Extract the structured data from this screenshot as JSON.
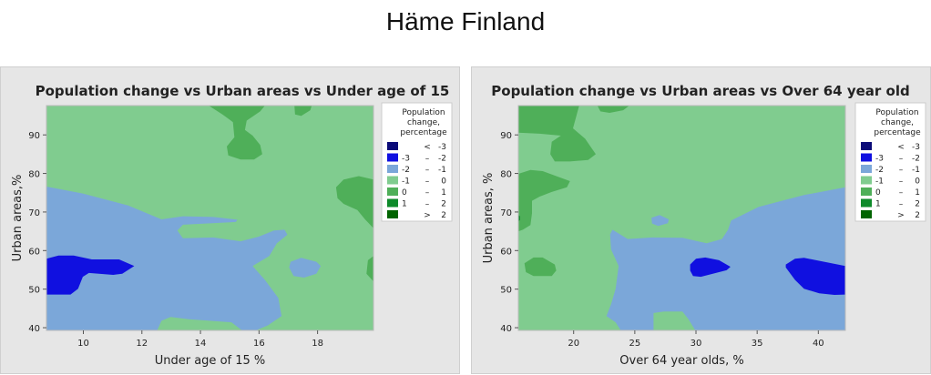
{
  "page_title": "Häme Finland",
  "chart_data": [
    {
      "type": "contour",
      "title": "Population change vs Urban areas vs  Under age of 15",
      "xlabel": "Under age of 15 %",
      "ylabel": "Urban areas,%",
      "xlim": [
        8.74,
        19.91
      ],
      "ylim": [
        39.3,
        97.6
      ],
      "xticks": [
        10,
        12,
        14,
        16,
        18
      ],
      "yticks": [
        40,
        50,
        60,
        70,
        80,
        90
      ],
      "legend_title": [
        "Population",
        "change,",
        "percentage"
      ],
      "levels": [
        {
          "lo": "",
          "sep": "<",
          "hi": "-3",
          "color": "#0b0b78"
        },
        {
          "lo": "-3",
          "sep": "–",
          "hi": "-2",
          "color": "#1010e0"
        },
        {
          "lo": "-2",
          "sep": "–",
          "hi": "-1",
          "color": "#7ba7d9"
        },
        {
          "lo": "-1",
          "sep": "–",
          "hi": "0",
          "color": "#80cc8f"
        },
        {
          "lo": "0",
          "sep": "–",
          "hi": "1",
          "color": "#4faf59"
        },
        {
          "lo": "1",
          "sep": "–",
          "hi": "2",
          "color": "#0e8a2a"
        },
        {
          "lo": "",
          "sep": ">",
          "hi": "2",
          "color": "#006400"
        }
      ],
      "background_level": 3,
      "regions": [
        {
          "level": 2,
          "points": [
            [
              8.74,
              76.6
            ],
            [
              9.98,
              74.8
            ],
            [
              11.53,
              71.7
            ],
            [
              12.67,
              68.1
            ],
            [
              13.4,
              68.9
            ],
            [
              14.44,
              68.7
            ],
            [
              15.26,
              68.0
            ],
            [
              15.21,
              67.4
            ],
            [
              13.4,
              66.7
            ],
            [
              13.21,
              65.2
            ],
            [
              13.4,
              63.2
            ],
            [
              14.44,
              63.4
            ],
            [
              15.37,
              62.4
            ],
            [
              15.99,
              63.6
            ],
            [
              16.51,
              65.2
            ],
            [
              16.87,
              65.4
            ],
            [
              16.97,
              64.1
            ],
            [
              16.61,
              61.9
            ],
            [
              16.35,
              58.6
            ],
            [
              15.78,
              56.0
            ],
            [
              16.2,
              52.4
            ],
            [
              16.66,
              47.7
            ],
            [
              16.77,
              43.0
            ],
            [
              16.3,
              40.6
            ],
            [
              15.89,
              39.3
            ],
            [
              8.74,
              39.3
            ]
          ]
        },
        {
          "level": 3,
          "points": [
            [
              12.52,
              39.3
            ],
            [
              12.67,
              41.8
            ],
            [
              12.98,
              42.8
            ],
            [
              13.61,
              42.2
            ],
            [
              15.06,
              41.4
            ],
            [
              15.42,
              39.3
            ]
          ]
        },
        {
          "level": 2,
          "points": [
            [
              17.08,
              57.1
            ],
            [
              17.44,
              58.1
            ],
            [
              17.96,
              57.1
            ],
            [
              18.11,
              56.0
            ],
            [
              17.96,
              54.0
            ],
            [
              17.54,
              53.0
            ],
            [
              17.18,
              53.4
            ],
            [
              17.03,
              55.6
            ]
          ]
        },
        {
          "level": 1,
          "points": [
            [
              8.74,
              57.9
            ],
            [
              9.15,
              58.7
            ],
            [
              9.67,
              58.7
            ],
            [
              10.29,
              57.7
            ],
            [
              11.22,
              57.7
            ],
            [
              11.74,
              56.0
            ],
            [
              11.33,
              54.0
            ],
            [
              11.02,
              53.7
            ],
            [
              10.19,
              54.2
            ],
            [
              9.98,
              53.2
            ],
            [
              9.82,
              50.1
            ],
            [
              9.56,
              48.6
            ],
            [
              8.74,
              48.6
            ]
          ]
        },
        {
          "level": 4,
          "points": [
            [
              14.28,
              97.6
            ],
            [
              16.2,
              97.6
            ],
            [
              16.04,
              96.1
            ],
            [
              15.58,
              93.7
            ],
            [
              15.52,
              91.3
            ],
            [
              15.78,
              89.8
            ],
            [
              16.04,
              87.4
            ],
            [
              16.11,
              85.0
            ],
            [
              15.83,
              83.6
            ],
            [
              15.37,
              83.6
            ],
            [
              14.95,
              84.7
            ],
            [
              14.9,
              87.0
            ],
            [
              15.16,
              89.4
            ],
            [
              15.11,
              93.3
            ],
            [
              14.75,
              95.3
            ]
          ]
        },
        {
          "level": 4,
          "points": [
            [
              17.21,
              97.6
            ],
            [
              17.8,
              97.6
            ],
            [
              17.75,
              96.4
            ],
            [
              17.44,
              94.9
            ],
            [
              17.23,
              95.3
            ]
          ]
        },
        {
          "level": 4,
          "points": [
            [
              19.91,
              78.4
            ],
            [
              19.41,
              79.3
            ],
            [
              18.89,
              78.4
            ],
            [
              18.63,
              76.4
            ],
            [
              18.68,
              73.6
            ],
            [
              18.89,
              72.1
            ],
            [
              19.36,
              70.5
            ],
            [
              19.62,
              68.1
            ],
            [
              19.91,
              65.8
            ]
          ]
        },
        {
          "level": 4,
          "points": [
            [
              19.91,
              58.6
            ],
            [
              19.72,
              57.5
            ],
            [
              19.67,
              54.0
            ],
            [
              19.91,
              52.0
            ]
          ]
        }
      ]
    },
    {
      "type": "contour",
      "title": "Population change vs Urban areas vs Over 64 year old",
      "xlabel": "Over 64 year olds, %",
      "ylabel": "Urban areas,  %",
      "xlim": [
        15.48,
        42.21
      ],
      "ylim": [
        39.3,
        97.6
      ],
      "xticks": [
        20,
        25,
        30,
        35,
        40
      ],
      "yticks": [
        40,
        50,
        60,
        70,
        80,
        90
      ],
      "legend_title": [
        "Population",
        "change,",
        "percentage"
      ],
      "levels": [
        {
          "lo": "",
          "sep": "<",
          "hi": "-3",
          "color": "#0b0b78"
        },
        {
          "lo": "-3",
          "sep": "–",
          "hi": "-2",
          "color": "#1010e0"
        },
        {
          "lo": "-2",
          "sep": "–",
          "hi": "-1",
          "color": "#7ba7d9"
        },
        {
          "lo": "-1",
          "sep": "–",
          "hi": "0",
          "color": "#80cc8f"
        },
        {
          "lo": "0",
          "sep": "–",
          "hi": "1",
          "color": "#4faf59"
        },
        {
          "lo": "1",
          "sep": "–",
          "hi": "2",
          "color": "#0e8a2a"
        },
        {
          "lo": "",
          "sep": ">",
          "hi": "2",
          "color": "#006400"
        }
      ],
      "background_level": 3,
      "regions": [
        {
          "level": 2,
          "points": [
            [
              42.21,
              76.4
            ],
            [
              38.83,
              74.4
            ],
            [
              35.11,
              71.3
            ],
            [
              32.87,
              67.8
            ],
            [
              32.62,
              65.4
            ],
            [
              32.12,
              63.0
            ],
            [
              30.88,
              61.9
            ],
            [
              28.89,
              63.3
            ],
            [
              26.41,
              63.4
            ],
            [
              24.42,
              63.0
            ],
            [
              23.18,
              65.4
            ],
            [
              22.98,
              64.2
            ],
            [
              23.06,
              60.3
            ],
            [
              23.68,
              56.0
            ],
            [
              23.43,
              50.1
            ],
            [
              23.06,
              46.1
            ],
            [
              22.68,
              43.0
            ],
            [
              23.43,
              41.4
            ],
            [
              23.85,
              39.3
            ],
            [
              42.21,
              39.3
            ]
          ]
        },
        {
          "level": 3,
          "points": [
            [
              26.53,
              39.3
            ],
            [
              26.53,
              43.8
            ],
            [
              27.4,
              44.2
            ],
            [
              28.89,
              44.2
            ],
            [
              29.39,
              42.2
            ],
            [
              29.94,
              39.3
            ]
          ]
        },
        {
          "level": 2,
          "points": [
            [
              26.36,
              68.5
            ],
            [
              27.03,
              69.2
            ],
            [
              27.78,
              68.1
            ],
            [
              27.7,
              67.1
            ],
            [
              26.91,
              66.4
            ],
            [
              26.41,
              67.0
            ]
          ]
        },
        {
          "level": 1,
          "points": [
            [
              29.52,
              56.4
            ],
            [
              30.01,
              57.9
            ],
            [
              30.76,
              58.2
            ],
            [
              31.88,
              57.5
            ],
            [
              32.82,
              55.8
            ],
            [
              32.5,
              54.9
            ],
            [
              31.38,
              54.0
            ],
            [
              30.39,
              53.2
            ],
            [
              29.76,
              53.4
            ],
            [
              29.52,
              54.8
            ]
          ]
        },
        {
          "level": 1,
          "points": [
            [
              37.34,
              56.4
            ],
            [
              38.09,
              57.9
            ],
            [
              38.83,
              58.1
            ],
            [
              42.21,
              56.0
            ],
            [
              42.21,
              48.6
            ],
            [
              41.32,
              48.5
            ],
            [
              40.07,
              48.9
            ],
            [
              38.83,
              50.1
            ],
            [
              38.09,
              52.4
            ],
            [
              37.34,
              55.6
            ]
          ]
        },
        {
          "level": 4,
          "points": [
            [
              15.48,
              97.6
            ],
            [
              20.45,
              97.6
            ],
            [
              19.95,
              91.7
            ],
            [
              20.94,
              89.0
            ],
            [
              21.81,
              85.0
            ],
            [
              21.19,
              83.5
            ],
            [
              19.7,
              83.1
            ],
            [
              18.46,
              83.1
            ],
            [
              18.09,
              85.0
            ],
            [
              18.21,
              88.2
            ],
            [
              18.96,
              89.8
            ],
            [
              17.22,
              90.3
            ],
            [
              15.48,
              90.6
            ]
          ]
        },
        {
          "level": 4,
          "points": [
            [
              21.94,
              97.6
            ],
            [
              24.55,
              97.6
            ],
            [
              24.05,
              96.4
            ],
            [
              22.93,
              95.7
            ],
            [
              22.19,
              96.1
            ]
          ]
        },
        {
          "level": 4,
          "points": [
            [
              15.48,
              79.9
            ],
            [
              16.47,
              80.9
            ],
            [
              17.47,
              80.6
            ],
            [
              19.7,
              78.0
            ],
            [
              19.45,
              76.4
            ],
            [
              18.21,
              75.2
            ],
            [
              17.22,
              74.0
            ],
            [
              16.6,
              72.9
            ],
            [
              16.6,
              69.7
            ],
            [
              16.47,
              66.6
            ],
            [
              15.85,
              65.4
            ],
            [
              15.48,
              65.0
            ]
          ]
        },
        {
          "level": 4,
          "points": [
            [
              15.98,
              56.7
            ],
            [
              16.72,
              58.2
            ],
            [
              17.47,
              58.2
            ],
            [
              18.46,
              56.4
            ],
            [
              18.58,
              54.8
            ],
            [
              18.21,
              53.4
            ],
            [
              16.72,
              53.4
            ],
            [
              16.1,
              54.4
            ]
          ]
        },
        {
          "level": 5,
          "points": [
            [
              15.48,
              69.2
            ],
            [
              15.62,
              68.9
            ],
            [
              15.62,
              67.9
            ],
            [
              15.48,
              67.6
            ]
          ]
        }
      ]
    }
  ]
}
